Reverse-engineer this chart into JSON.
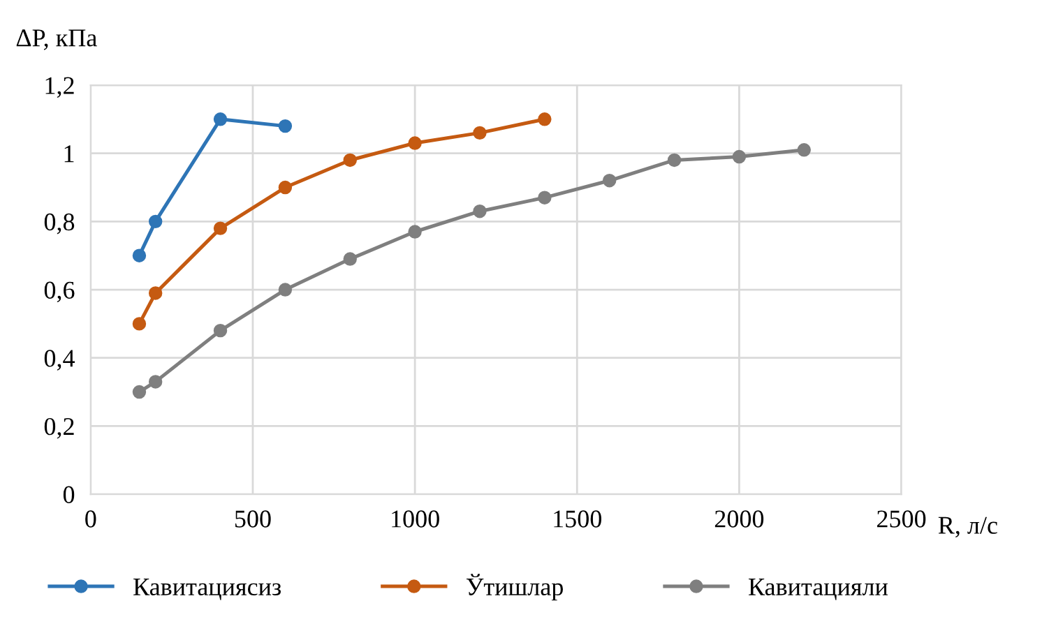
{
  "chart_data": {
    "type": "line",
    "ylabel": "ΔP, кПа",
    "xlabel": "R, л/с",
    "x": [
      150,
      200,
      400,
      600,
      800,
      1000,
      1200,
      1400,
      1600,
      1800,
      2000,
      2200
    ],
    "series": [
      {
        "name": "Кавитациясиз",
        "color": "#2e75b6",
        "x": [
          150,
          200,
          400,
          600
        ],
        "values": [
          0.7,
          0.8,
          1.1,
          1.08
        ]
      },
      {
        "name": "Ўтишлар",
        "color": "#c55a11",
        "x": [
          150,
          200,
          400,
          600,
          800,
          1000,
          1200,
          1400
        ],
        "values": [
          0.5,
          0.59,
          0.78,
          0.9,
          0.98,
          1.03,
          1.06,
          1.1
        ]
      },
      {
        "name": "Кавитацияли",
        "color": "#7f7f7f",
        "values": [
          0.3,
          0.33,
          0.48,
          0.6,
          0.69,
          0.77,
          0.83,
          0.87,
          0.92,
          0.98,
          0.99,
          1.01
        ]
      }
    ],
    "xlim": [
      0,
      2500
    ],
    "xticks": [
      0,
      500,
      1000,
      1500,
      2000,
      2500
    ],
    "ylim": [
      0,
      1.2
    ],
    "yticks": [
      0,
      {
        "value": 0.2,
        "label": "0,2"
      },
      {
        "value": 0.4,
        "label": "0,4"
      },
      {
        "value": 0.6,
        "label": "0,6"
      },
      {
        "value": 0.8,
        "label": "0,8"
      },
      1,
      {
        "value": 1.2,
        "label": "1,2"
      }
    ],
    "grid": true,
    "legend": "bottom",
    "marker": "circle",
    "line_style": "solid"
  }
}
